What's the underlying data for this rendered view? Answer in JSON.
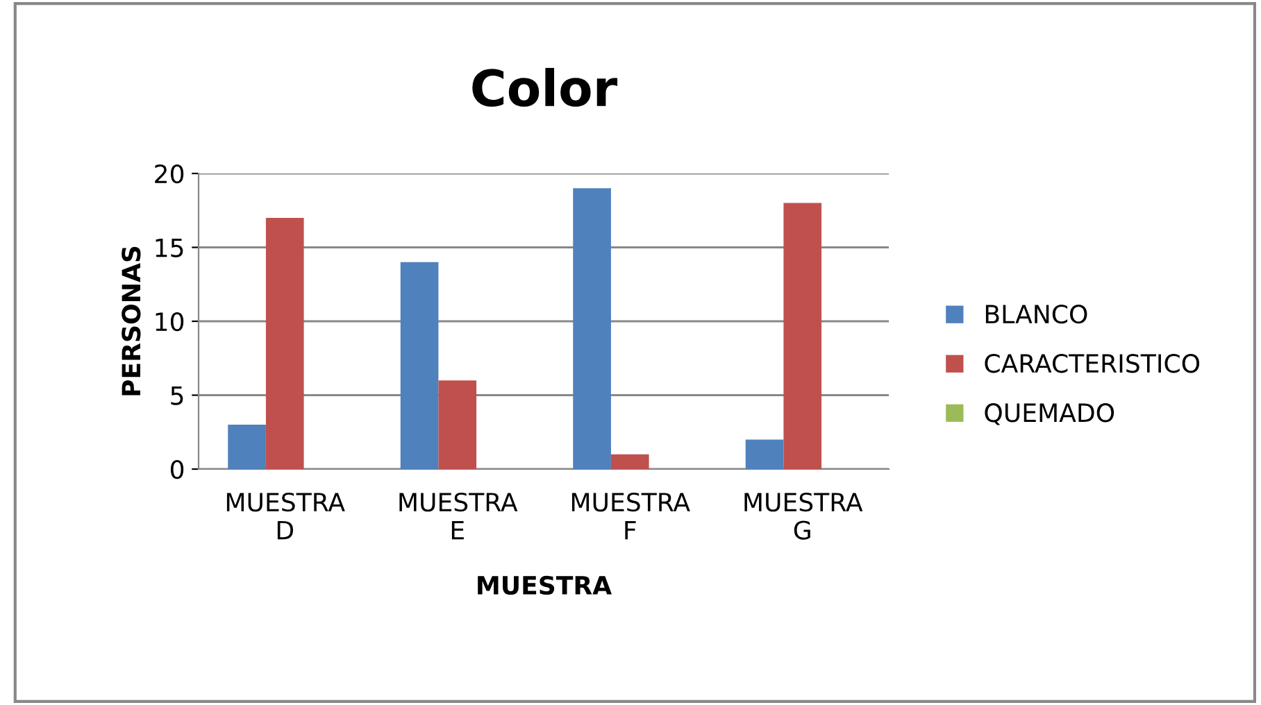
{
  "chart_data": {
    "type": "bar",
    "title": "Color",
    "xlabel": "MUESTRA",
    "ylabel": "PERSONAS",
    "categories": [
      "MUESTRA D",
      "MUESTRA E",
      "MUESTRA F",
      "MUESTRA G"
    ],
    "series": [
      {
        "name": "BLANCO",
        "color": "#4f81bd",
        "values": [
          3,
          14,
          19,
          2
        ]
      },
      {
        "name": "CARACTERISTICO",
        "color": "#c0504d",
        "values": [
          17,
          6,
          1,
          18
        ]
      },
      {
        "name": "QUEMADO",
        "color": "#9bbb59",
        "values": [
          0,
          0,
          0,
          0
        ]
      }
    ],
    "ylim": [
      0,
      20
    ],
    "yticks": [
      0,
      5,
      10,
      15,
      20
    ],
    "grid": "y",
    "legend": "right"
  }
}
